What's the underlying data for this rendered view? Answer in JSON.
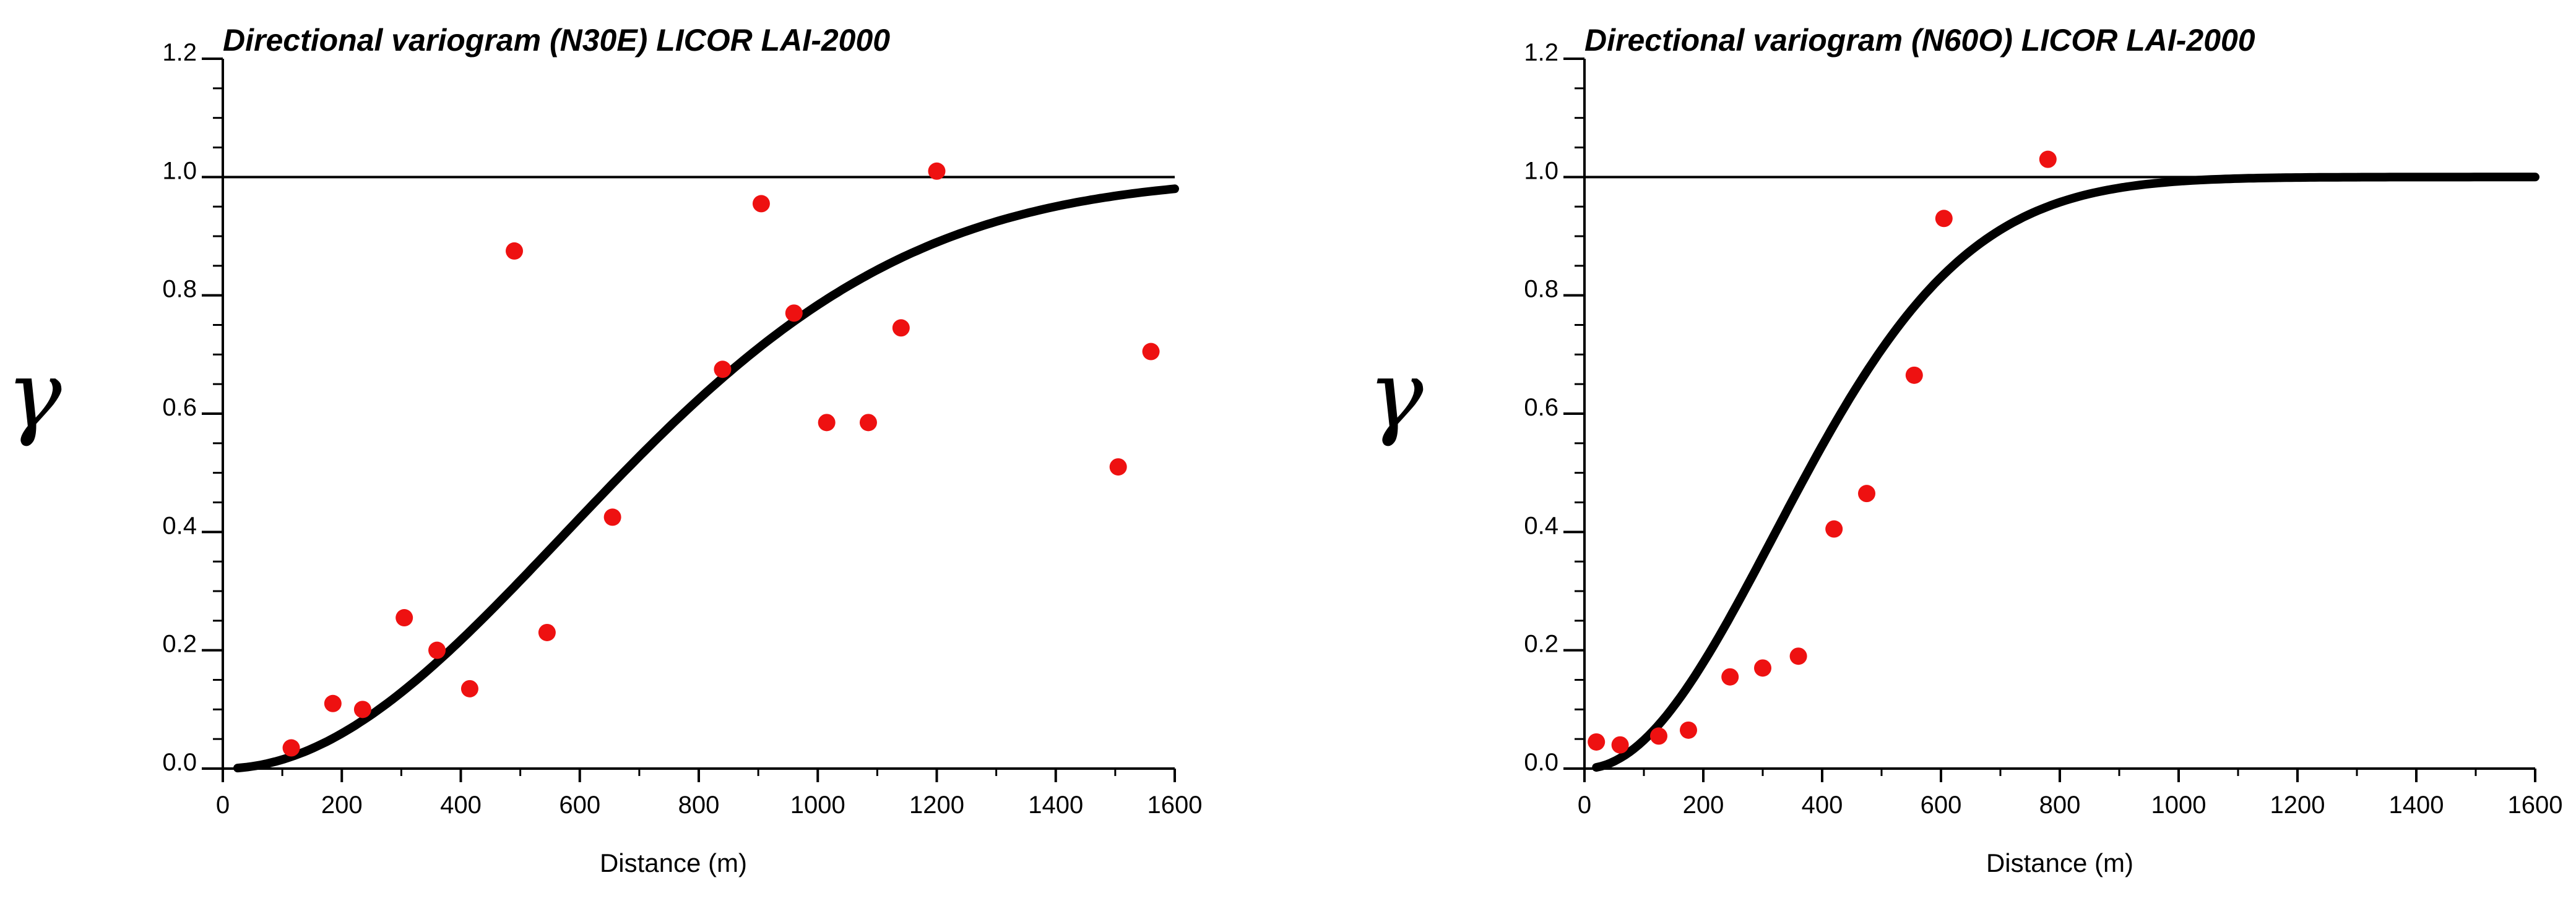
{
  "chart_data": [
    {
      "type": "scatter",
      "title": "Directional variogram (N30E) LICOR LAI-2000",
      "xlabel": "Distance (m)",
      "ylabel": "γ",
      "xlim": [
        0,
        1600
      ],
      "ylim": [
        0,
        1.2
      ],
      "xticks": [
        "0",
        "200",
        "400",
        "600",
        "800",
        "1000",
        "1200",
        "1400",
        "1600"
      ],
      "yticks": [
        "0.0",
        "0.2",
        "0.4",
        "0.6",
        "0.8",
        "1.0",
        "1.2"
      ],
      "sill": 1.0,
      "colors": {
        "points": "#ee1111",
        "model": "#000000",
        "sill": "#000000"
      },
      "model": {
        "kind": "gaussian",
        "nugget": 0.0,
        "sill": 1.0,
        "range": 1400,
        "x_start": 25,
        "x_end": 1600
      },
      "points": [
        {
          "x": 115,
          "y": 0.035
        },
        {
          "x": 185,
          "y": 0.11
        },
        {
          "x": 235,
          "y": 0.1
        },
        {
          "x": 305,
          "y": 0.255
        },
        {
          "x": 360,
          "y": 0.2
        },
        {
          "x": 415,
          "y": 0.135
        },
        {
          "x": 490,
          "y": 0.875
        },
        {
          "x": 545,
          "y": 0.23
        },
        {
          "x": 655,
          "y": 0.425
        },
        {
          "x": 840,
          "y": 0.675
        },
        {
          "x": 905,
          "y": 0.955
        },
        {
          "x": 960,
          "y": 0.77
        },
        {
          "x": 1015,
          "y": 0.585
        },
        {
          "x": 1085,
          "y": 0.585
        },
        {
          "x": 1140,
          "y": 0.745
        },
        {
          "x": 1200,
          "y": 1.01
        },
        {
          "x": 1505,
          "y": 0.51
        },
        {
          "x": 1560,
          "y": 0.705
        }
      ]
    },
    {
      "type": "scatter",
      "title": "Directional variogram (N60O) LICOR LAI-2000",
      "xlabel": "Distance (m)",
      "ylabel": "γ",
      "xlim": [
        0,
        1600
      ],
      "ylim": [
        0,
        1.2
      ],
      "xticks": [
        "0",
        "200",
        "400",
        "600",
        "800",
        "1000",
        "1200",
        "1400",
        "1600"
      ],
      "yticks": [
        "0.0",
        "0.2",
        "0.4",
        "0.6",
        "0.8",
        "1.0",
        "1.2"
      ],
      "sill": 1.0,
      "colors": {
        "points": "#ee1111",
        "model": "#000000",
        "sill": "#000000"
      },
      "model": {
        "kind": "gaussian",
        "nugget": 0.0,
        "sill": 1.0,
        "range": 780,
        "x_start": 20,
        "x_end": 1600
      },
      "points": [
        {
          "x": 20,
          "y": 0.045
        },
        {
          "x": 60,
          "y": 0.04
        },
        {
          "x": 125,
          "y": 0.055
        },
        {
          "x": 175,
          "y": 0.065
        },
        {
          "x": 245,
          "y": 0.155
        },
        {
          "x": 300,
          "y": 0.17
        },
        {
          "x": 360,
          "y": 0.19
        },
        {
          "x": 420,
          "y": 0.405
        },
        {
          "x": 475,
          "y": 0.465
        },
        {
          "x": 555,
          "y": 0.665
        },
        {
          "x": 605,
          "y": 0.93
        },
        {
          "x": 780,
          "y": 1.03
        }
      ]
    }
  ]
}
